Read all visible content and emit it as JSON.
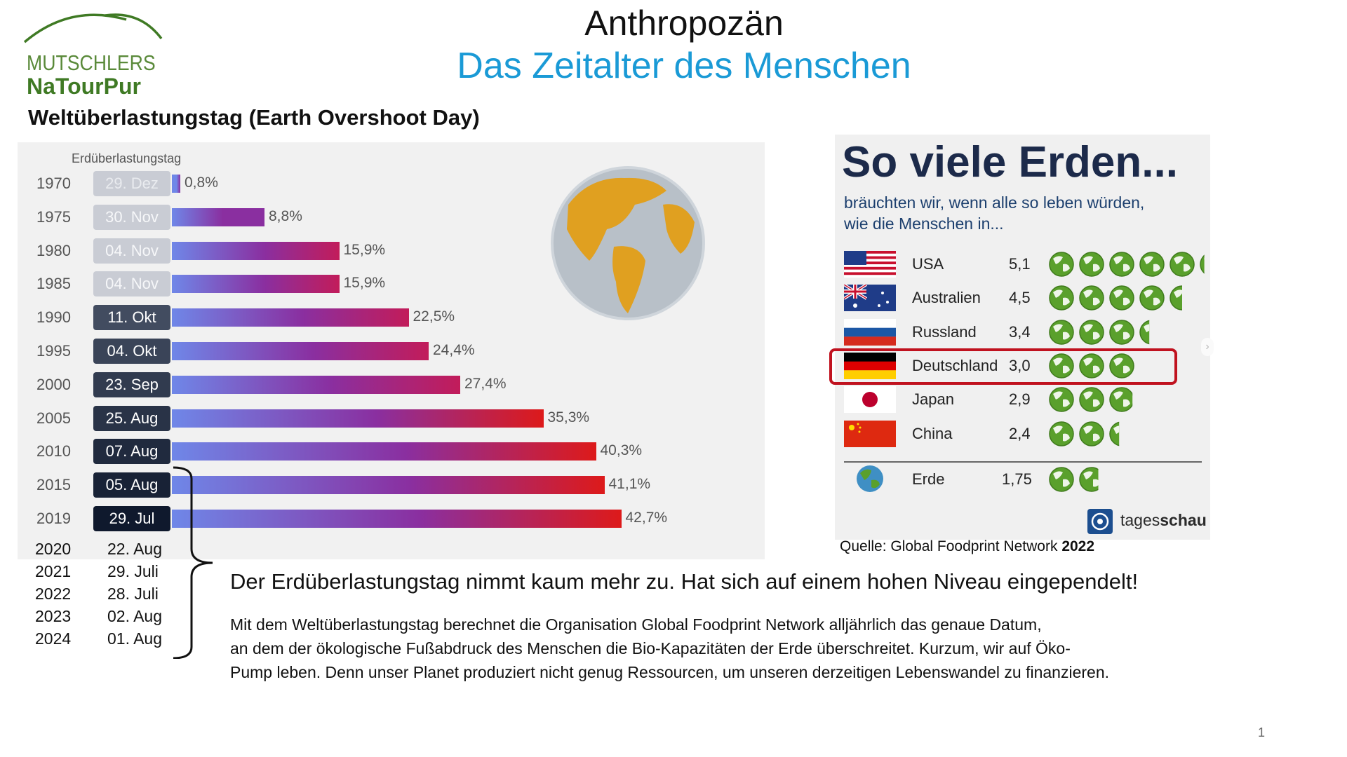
{
  "logo": {
    "line1": "MUTSCHLERS",
    "line2": "NaTourPur"
  },
  "title": "Anthropozän",
  "subtitle": "Das Zeitalter des Menschen",
  "section_heading": "Weltüberlastungstag (Earth Overshoot Day)",
  "chart_data": [
    {
      "type": "bar",
      "orientation": "horizontal",
      "title": "",
      "category_axis_label": "Erdüberlastungstag",
      "categories": [
        "1970",
        "1975",
        "1980",
        "1985",
        "1990",
        "1995",
        "2000",
        "2005",
        "2010",
        "2015",
        "2019"
      ],
      "date_labels": [
        "29. Dez",
        "30. Nov",
        "04. Nov",
        "04. Nov",
        "11. Okt",
        "04. Okt",
        "23. Sep",
        "25. Aug",
        "07. Aug",
        "05. Aug",
        "29. Jul"
      ],
      "values": [
        0.8,
        8.8,
        15.9,
        15.9,
        22.5,
        24.4,
        27.4,
        35.3,
        40.3,
        41.1,
        42.7
      ],
      "value_labels": [
        "0,8%",
        "8,8%",
        "15,9%",
        "15,9%",
        "22,5%",
        "24,4%",
        "27,4%",
        "35,3%",
        "40,3%",
        "41,1%",
        "42,7%"
      ],
      "xlim": [
        0,
        45
      ],
      "grid": false,
      "colors": {
        "bar_start": "#6f87e8",
        "bar_mid": "#8a2fa0",
        "bar_end": "#dd1a1a",
        "date_light": "#c9ccd4",
        "date_dark": "#1e2a3c"
      }
    },
    {
      "type": "bar",
      "orientation": "horizontal",
      "title": "So viele Erden...",
      "subtitle": "bräuchten wir, wenn alle so leben würden, wie die Menschen in...",
      "categories": [
        "USA",
        "Australien",
        "Russland",
        "Deutschland",
        "Japan",
        "China",
        "Erde"
      ],
      "values": [
        5.1,
        4.5,
        3.4,
        3.0,
        2.9,
        2.4,
        1.75
      ],
      "value_labels": [
        "5,1",
        "4,5",
        "3,4",
        "3,0",
        "2,9",
        "2,4",
        "1,75"
      ],
      "highlighted": "Deutschland",
      "unit_icon": "earth-globe-icon",
      "colors": {
        "earth_green": "#5aa02c",
        "highlight": "#c0121f"
      }
    }
  ],
  "later_years": [
    {
      "year": "2020",
      "date": "22. Aug"
    },
    {
      "year": "2021",
      "date": "29. Juli"
    },
    {
      "year": "2022",
      "date": "28. Juli"
    },
    {
      "year": "2023",
      "date": "02. Aug"
    },
    {
      "year": "2024",
      "date": "01. Aug"
    }
  ],
  "infographic": {
    "sub_line1": "bräuchten wir, wenn alle so leben würden,",
    "sub_line2": "wie die Menschen in...",
    "brand_light": "tages",
    "brand_bold": "schau"
  },
  "source": {
    "prefix": "Quelle: Global Foodprint Network ",
    "year": "2022"
  },
  "statement": "Der Erdüberlastungstag nimmt kaum mehr zu. Hat sich auf einem hohen Niveau eingependelt!",
  "paragraph_lines": [
    "Mit dem Weltüberlastungstag berechnet die Organisation Global Foodprint Network alljährlich das genaue Datum,",
    "an dem der ökologische Fußabdruck des Menschen die Bio-Kapazitäten der Erde überschreitet. Kurzum, wir auf Öko-",
    "Pump leben. Denn unser Planet produziert nicht genug Ressourcen, um unseren derzeitigen Lebenswandel zu finanzieren."
  ],
  "page_number": "1"
}
